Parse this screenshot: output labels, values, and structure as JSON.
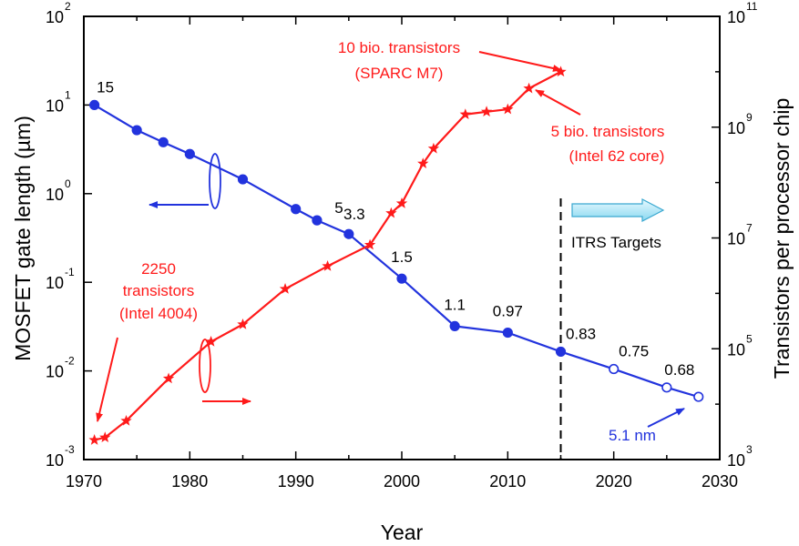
{
  "chart_data": {
    "type": "line",
    "xlabel": "Year",
    "ylabel_left": "MOSFET gate length (µm)",
    "ylabel_right": "Transistors per processor chip",
    "xlim": [
      1970,
      2030
    ],
    "ylim_left": [
      0.001,
      100
    ],
    "ylim_right": [
      1000,
      100000000000
    ],
    "yscale": "log",
    "grid": false,
    "x_ticks": [
      "1970",
      "1980",
      "1990",
      "2000",
      "2010",
      "2020",
      "2030"
    ],
    "y_left_ticks": [
      {
        "base": "10",
        "exp": "-3"
      },
      {
        "base": "10",
        "exp": "-2"
      },
      {
        "base": "10",
        "exp": "-1"
      },
      {
        "base": "10",
        "exp": "0"
      },
      {
        "base": "10",
        "exp": "1"
      },
      {
        "base": "10",
        "exp": "2"
      }
    ],
    "y_right_ticks": [
      {
        "base": "10",
        "exp": "3"
      },
      {
        "base": "10",
        "exp": "5"
      },
      {
        "base": "10",
        "exp": "7"
      },
      {
        "base": "10",
        "exp": "9"
      },
      {
        "base": "10",
        "exp": "11"
      }
    ],
    "series": [
      {
        "color": "#2233dd",
        "axis": "left",
        "x": [
          1971,
          1975,
          1977.5,
          1980,
          1985,
          1990,
          1992,
          1995,
          2000,
          2005,
          2010,
          2015,
          2020,
          2025,
          2028
        ],
        "y": [
          10,
          5.2,
          3.8,
          2.8,
          1.45,
          0.67,
          0.5,
          0.35,
          0.11,
          0.032,
          0.027,
          0.0165,
          0.0105,
          0.0065,
          0.0051
        ],
        "hollow_from_index": 12
      },
      {
        "color": "#ff1a1a",
        "axis": "right",
        "x": [
          1971,
          1972,
          1974,
          1978,
          1982,
          1985,
          1989,
          1993,
          1997,
          1999,
          2000,
          2002,
          2003,
          2006,
          2008,
          2010,
          2012,
          2015
        ],
        "y": [
          2250,
          2500,
          5000,
          29000,
          134000,
          275000,
          1200000,
          3100000,
          7500000,
          28000000,
          42000000,
          220000000,
          410000000,
          1700000000,
          1900000000,
          2100000000,
          5000000000,
          10000000000
        ]
      }
    ],
    "annotations": {
      "blue_labels": [
        {
          "text": "15",
          "x": 1971,
          "y": 10
        },
        {
          "text": "5",
          "x": 1992,
          "y": 0.5
        },
        {
          "text": "3.3",
          "x": 1995,
          "y": 0.35
        },
        {
          "text": "1.5",
          "x": 2000,
          "y": 0.11
        },
        {
          "text": "1.1",
          "x": 2005,
          "y": 0.032
        },
        {
          "text": "0.97",
          "x": 2010,
          "y": 0.027
        },
        {
          "text": "0.83",
          "x": 2015,
          "y": 0.0165
        },
        {
          "text": "0.75",
          "x": 2020,
          "y": 0.0105
        },
        {
          "text": "0.68",
          "x": 2025,
          "y": 0.0065
        }
      ],
      "red_top_1": "10 bio. transistors",
      "red_top_2": "(SPARC M7)",
      "red_mid_1": "5 bio. transistors",
      "red_mid_2": "(Intel 62 core)",
      "red_left_1": "2250",
      "red_left_2": "transistors",
      "red_left_3": "(Intel 4004)",
      "itrs": "ITRS Targets",
      "itrs_year": 2015,
      "end_label": "5.1 nm"
    }
  }
}
